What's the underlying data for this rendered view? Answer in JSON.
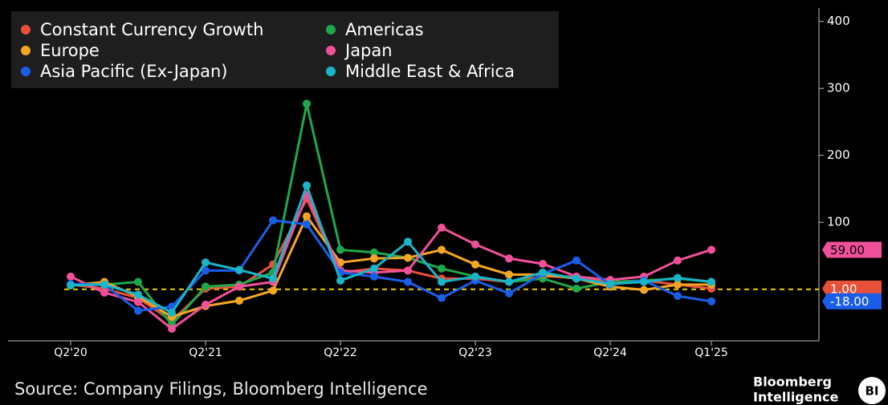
{
  "chart_data": {
    "type": "line",
    "categories": [
      "Q2'20",
      null,
      null,
      null,
      "Q2'21",
      null,
      null,
      null,
      "Q2'22",
      null,
      null,
      null,
      "Q2'23",
      null,
      null,
      null,
      "Q2'24",
      null,
      null,
      "Q1'25"
    ],
    "series": [
      {
        "name": "Constant Currency Growth",
        "color": "#e8503a",
        "values": [
          7,
          1,
          -13,
          -47,
          1,
          4,
          37,
          135,
          25,
          31,
          28,
          16,
          16,
          11,
          19,
          19,
          11,
          13,
          7,
          1
        ],
        "value_labels": [
          null,
          null,
          null,
          null,
          null,
          null,
          null,
          null,
          null,
          null,
          null,
          null,
          null,
          null,
          null,
          null,
          null,
          null,
          null,
          "1.00"
        ]
      },
      {
        "name": "Americas",
        "color": "#1fa84a",
        "values": [
          7,
          7,
          11,
          -53,
          4,
          7,
          25,
          277,
          59,
          55,
          47,
          31,
          19,
          11,
          16,
          1,
          11,
          13,
          16,
          11
        ]
      },
      {
        "name": "Europe",
        "color": "#f5a623",
        "values": [
          6,
          11,
          -11,
          -41,
          -25,
          -17,
          -2,
          109,
          40,
          46,
          47,
          59,
          37,
          22,
          22,
          16,
          4,
          -1,
          7,
          7
        ]
      },
      {
        "name": "Japan",
        "color": "#f0509a",
        "values": [
          19,
          -5,
          -19,
          -59,
          -23,
          4,
          11,
          141,
          28,
          25,
          28,
          92,
          67,
          46,
          38,
          19,
          14,
          19,
          43,
          59
        ],
        "value_labels": [
          null,
          null,
          null,
          null,
          null,
          null,
          null,
          null,
          null,
          null,
          null,
          null,
          null,
          null,
          null,
          null,
          null,
          null,
          null,
          "59.00"
        ]
      },
      {
        "name": "Asia Pacific (Ex-Japan)",
        "color": "#1a5ee8",
        "values": [
          8,
          7,
          -32,
          -26,
          28,
          28,
          103,
          97,
          25,
          19,
          11,
          -13,
          13,
          -6,
          23,
          43,
          7,
          13,
          -10,
          -18
        ],
        "value_labels": [
          null,
          null,
          null,
          null,
          null,
          null,
          null,
          null,
          null,
          null,
          null,
          null,
          null,
          null,
          null,
          null,
          null,
          null,
          null,
          "-18.00"
        ]
      },
      {
        "name": "Middle East & Africa",
        "color": "#19b5c8",
        "values": [
          6,
          7,
          -8,
          -35,
          40,
          29,
          16,
          155,
          13,
          31,
          71,
          11,
          19,
          11,
          25,
          16,
          8,
          11,
          17,
          11
        ]
      }
    ],
    "ylim": [
      -77,
      420
    ],
    "yticks": [
      100,
      200,
      300,
      400
    ],
    "hline": {
      "value": 0,
      "color": "#f0d000"
    },
    "source": "Source: Company Filings, Bloomberg Intelligence",
    "logo": {
      "line1": "Bloomberg",
      "line2": "Intelligence",
      "badge": "BI"
    }
  }
}
